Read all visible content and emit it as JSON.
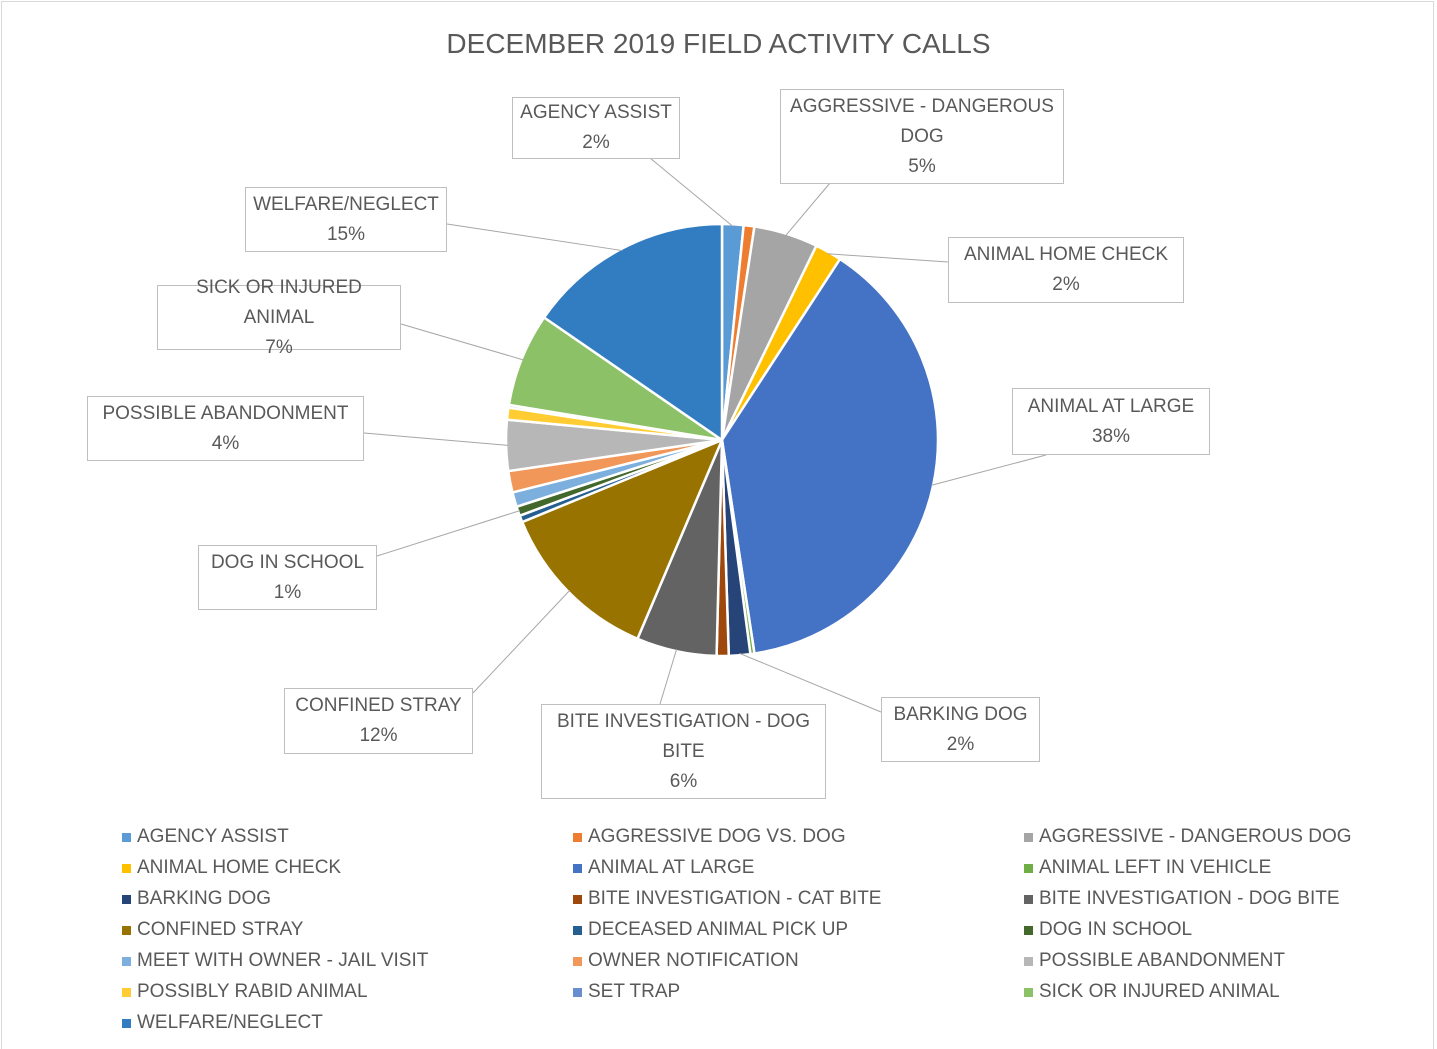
{
  "chart_data": {
    "type": "pie",
    "title": "DECEMBER 2019 FIELD ACTIVITY CALLS",
    "categories": [
      "AGENCY ASSIST",
      "AGGRESSIVE DOG VS. DOG",
      "AGGRESSIVE - DANGEROUS DOG",
      "ANIMAL HOME CHECK",
      "ANIMAL AT LARGE",
      "ANIMAL LEFT IN VEHICLE",
      "BARKING DOG",
      "BITE INVESTIGATION - CAT BITE",
      "BITE INVESTIGATION - DOG BITE",
      "CONFINED STRAY",
      "DECEASED ANIMAL PICK UP",
      "DOG IN SCHOOL",
      "MEET WITH OWNER - JAIL VISIT",
      "OWNER NOTIFICATION",
      "POSSIBLE ABANDONMENT",
      "POSSIBLY RABID ANIMAL",
      "SET TRAP",
      "SICK OR INJURED ANIMAL",
      "WELFARE/NEGLECT"
    ],
    "values": [
      1.6,
      0.8,
      4.8,
      2.0,
      38.4,
      0.3,
      1.6,
      0.9,
      6.0,
      12.4,
      0.5,
      0.7,
      1.1,
      1.6,
      3.8,
      0.9,
      0.2,
      7.0,
      15.4
    ],
    "value_labels": [
      "2%",
      null,
      "5%",
      "2%",
      "38%",
      null,
      "2%",
      null,
      "6%",
      "12%",
      null,
      "1%",
      null,
      null,
      "4%",
      null,
      null,
      "7%",
      "15%"
    ],
    "colors": [
      "#5B9BD5",
      "#ED7D31",
      "#A5A5A5",
      "#FFC000",
      "#4472C4",
      "#70AD47",
      "#264478",
      "#9E480E",
      "#636363",
      "#997300",
      "#255E91",
      "#43682B",
      "#7CAFDD",
      "#F1975A",
      "#B7B7B7",
      "#FFCD33",
      "#698ED0",
      "#8CC168",
      "#327DC2"
    ],
    "legend": "bottom"
  }
}
